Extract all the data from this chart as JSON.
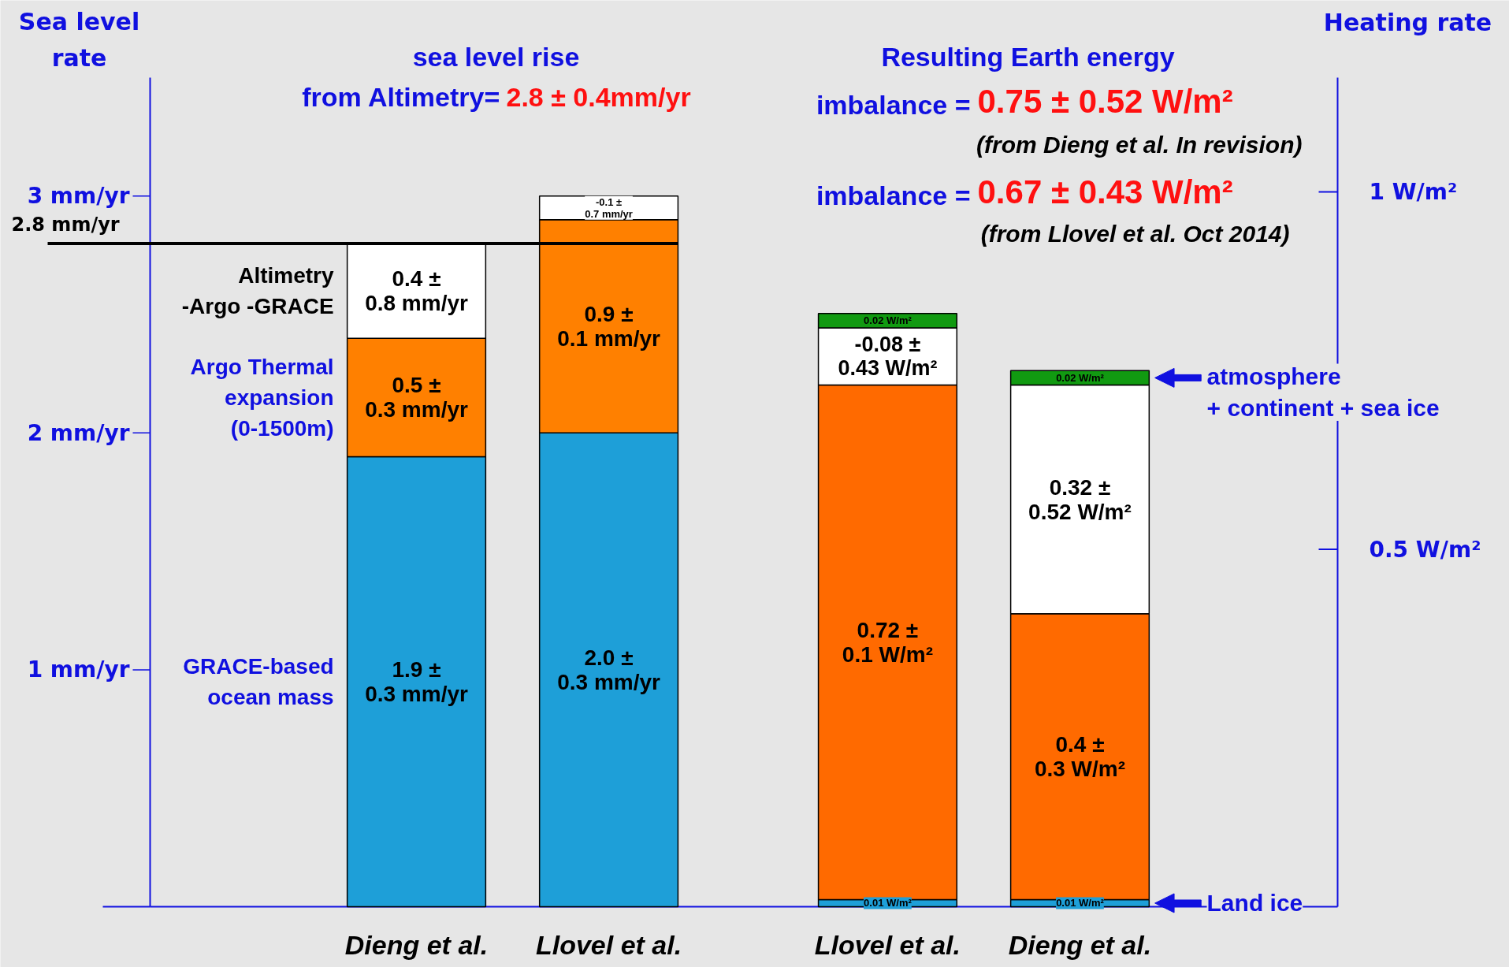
{
  "chart_data": {
    "type": "bar",
    "categories": [
      "Dieng et al.",
      "Llovel et al.",
      "Llovel et al.",
      "Dieng et al."
    ],
    "ylabel": "Sea level\nrate",
    "y2label": "Heating rate",
    "ylim": [
      0,
      3.5
    ],
    "yticks": [
      {
        "value": 1,
        "label": "1 mm/yr"
      },
      {
        "value": 2,
        "label": "2 mm/yr"
      },
      {
        "value": 3,
        "label": "3 mm/yr"
      }
    ],
    "y2lim": [
      0,
      1.16
    ],
    "y2ticks": [
      {
        "value": 0.5,
        "label": "0.5 W/m²"
      },
      {
        "value": 1,
        "label": "1 W/m²"
      }
    ],
    "series": [
      {
        "name": "GRACE-based\nocean mass",
        "color": "#1e9fd8",
        "values": [
          1.9,
          2.0,
          null,
          null
        ],
        "base": [
          0,
          0,
          null,
          null
        ],
        "value_labels": [
          "1.9 ±\n0.3 mm/yr",
          "2.0 ±\n0.3 mm/yr",
          null,
          null
        ]
      },
      {
        "name": "Argo Thermal\nexpansion\n(0-1500m)",
        "color": "#ff8000",
        "values": [
          0.5,
          0.9,
          null,
          null
        ],
        "base": [
          1.9,
          2.0,
          null,
          null
        ],
        "value_labels": [
          "0.5 ±\n0.3 mm/yr",
          "0.9 ±\n0.1 mm/yr",
          null,
          null
        ]
      },
      {
        "name": "Altimetry\n-Argo -GRACE",
        "color": "#ffffff",
        "values": [
          0.4,
          -0.1,
          null,
          null
        ],
        "base": [
          2.4,
          3.0,
          null,
          null
        ],
        "value_labels": [
          "0.4 ±\n0.8 mm/yr",
          "-0.1 ±\n0.7 mm/yr",
          null,
          null
        ]
      },
      {
        "name": "Land ice",
        "axis": "y2",
        "color": "#1e9fd8",
        "values": [
          null,
          null,
          0.01,
          0.01
        ],
        "base": [
          null,
          null,
          0,
          0
        ],
        "value_labels": [
          null,
          null,
          "0.01 W/m²",
          "0.01 W/m²"
        ]
      },
      {
        "axis": "y2",
        "color": "#ff6a00",
        "values": [
          null,
          null,
          0.72,
          0.4
        ],
        "base": [
          null,
          null,
          0.01,
          0.01
        ],
        "value_labels": [
          null,
          null,
          "0.72 ±\n0.1 W/m²",
          "0.4 ±\n0.3 W/m²"
        ]
      },
      {
        "axis": "y2",
        "color": "#ffffff",
        "values": [
          null,
          null,
          -0.08,
          0.32
        ],
        "base": [
          null,
          null,
          0.81,
          0.41
        ],
        "value_labels": [
          null,
          null,
          "-0.08 ±\n0.43 W/m²",
          "0.32 ±\n0.52 W/m²"
        ]
      },
      {
        "name": "atmosphere\n+ continent + sea ice",
        "axis": "y2",
        "color": "#119a11",
        "values": [
          null,
          null,
          0.02,
          0.02
        ],
        "base": [
          null,
          null,
          0.81,
          0.73
        ],
        "value_labels": [
          null,
          null,
          "0.02 W/m²",
          "0.02 W/m²"
        ]
      }
    ],
    "ref_lines": [
      {
        "axis": "y",
        "value": 2.8,
        "label": "2.8 mm/yr"
      }
    ],
    "annotations": [
      "sea level rise",
      "from Altimetry=",
      "2.8 ± 0.4mm/yr",
      "Resulting Earth energy",
      "imbalance =",
      "0.75 ± 0.52 W/m²",
      "(from Dieng et al. In revision)",
      "imbalance =",
      "0.67 ± 0.43 W/m²",
      "(from Llovel et al. Oct 2014)"
    ],
    "grid": false,
    "legend": false
  }
}
